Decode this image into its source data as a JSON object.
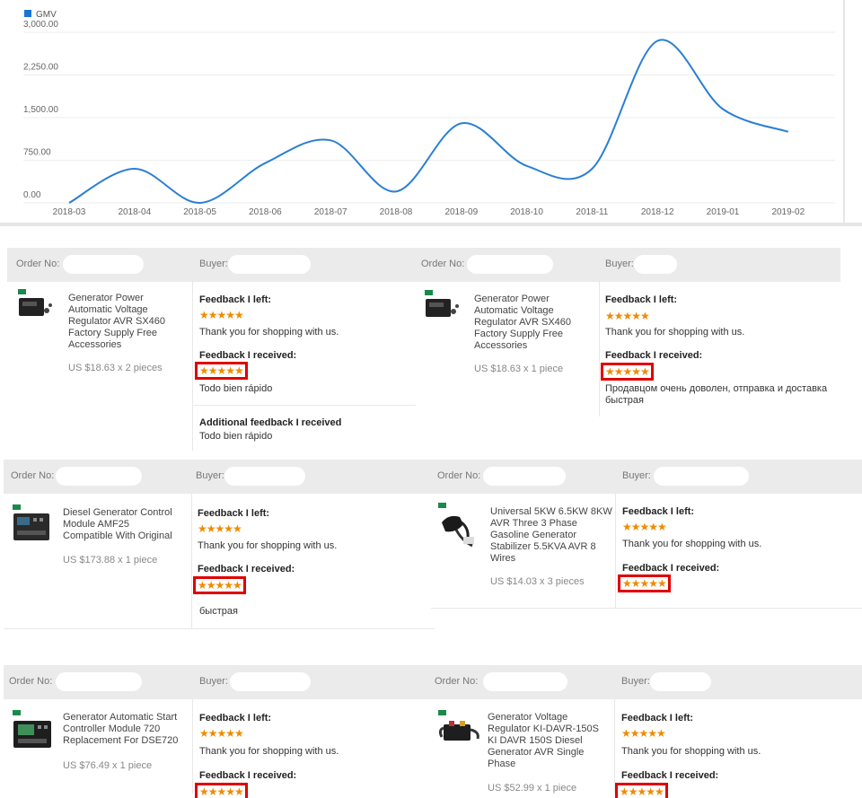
{
  "chart_data": {
    "type": "line",
    "legend": "GMV",
    "legend_color": "#1976d2",
    "line_color": "#2a7fd4",
    "x": [
      "2018-03",
      "2018-04",
      "2018-05",
      "2018-06",
      "2018-07",
      "2018-08",
      "2018-09",
      "2018-10",
      "2018-11",
      "2018-12",
      "2019-01",
      "2019-02"
    ],
    "values": [
      0,
      600,
      0,
      700,
      1100,
      200,
      1400,
      650,
      600,
      2850,
      1650,
      1250
    ],
    "y_ticks": [
      "0.00",
      "750.00",
      "1,500.00",
      "2,250.00",
      "3,000.00"
    ],
    "ylim": [
      0,
      3000
    ],
    "grid": true,
    "legend_position": "top-left"
  },
  "labels": {
    "order_no": "Order No:",
    "buyer": "Buyer:",
    "feedback_left": "Feedback I left:",
    "feedback_received": "Feedback I received:",
    "additional_feedback": "Additional feedback I received",
    "stars": "★★★★★"
  },
  "orders": [
    {
      "title": "Generator Power Automatic Voltage Regulator AVR SX460 Factory Supply Free Accessories",
      "price": "US $18.63 x 2 pieces",
      "left_text": "Thank you for shopping with us.",
      "received_text": "Todo bien rápido",
      "additional_text": "Todo bien rápido",
      "thumb": "avr-regulator-icon"
    },
    {
      "title": "Generator Power Automatic Voltage Regulator AVR SX460 Factory Supply Free Accessories",
      "price": "US $18.63 x 1 piece",
      "left_text": "Thank you for shopping with us.",
      "received_text": "Продавцом очень доволен, отправка и доставка быстрая",
      "thumb": "avr-regulator-icon"
    },
    {
      "title": "Diesel Generator Control Module AMF25 Compatible With Original",
      "price": "US $173.88 x 1 piece",
      "left_text": "Thank you for shopping with us.",
      "received_text": "быстрая",
      "thumb": "control-module-icon"
    },
    {
      "title": "Universal 5KW 6.5KW 8KW AVR Three 3 Phase Gasoline Generator Stabilizer 5.5KVA AVR 8 Wires",
      "price": "US $14.03 x 3 pieces",
      "left_text": "Thank you for shopping with us.",
      "received_text": "",
      "thumb": "wired-avr-icon"
    },
    {
      "title": "Generator Automatic Start Controller Module 720 Replacement For DSE720",
      "price": "US $76.49 x 1 piece",
      "left_text": "Thank you for shopping with us.",
      "received_text": "",
      "thumb": "controller-720-icon"
    },
    {
      "title": "Generator Voltage Regulator KI-DAVR-150S KI DAVR 150S Diesel Generator AVR Single Phase",
      "price": "US $52.99 x 1 piece",
      "left_text": "Thank you for shopping with us.",
      "received_text": "",
      "thumb": "davr-regulator-icon"
    }
  ]
}
